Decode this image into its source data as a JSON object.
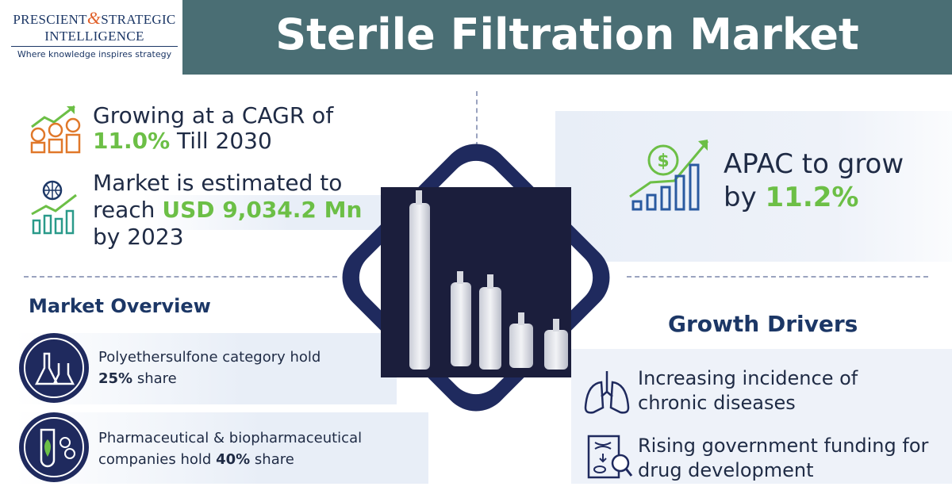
{
  "logo": {
    "name_a": "PRESCIENT",
    "amp": "&",
    "name_b": "STRATEGIC",
    "name_c": "INTELLIGENCE",
    "tagline": "Where knowledge inspires strategy"
  },
  "header": {
    "title": "Sterile Filtration Market"
  },
  "highlights": [
    {
      "lines": [
        "Growing at a CAGR of"
      ],
      "value": "11.0%",
      "suffix": "Till 2030"
    },
    {
      "lines": [
        "Market is estimated to",
        "reach"
      ],
      "value": "USD 9,034.2 Mn",
      "suffix": "by 2023"
    }
  ],
  "apac": {
    "lines": [
      "APAC to grow",
      "by"
    ],
    "value": "11.2%"
  },
  "overview": {
    "title": "Market Overview",
    "items": [
      {
        "text": "Polyethersulfone category hold",
        "value": "25%",
        "suffix": "share"
      },
      {
        "text": "Pharmaceutical & biopharmaceutical companies hold",
        "value": "40%",
        "suffix": "share"
      }
    ]
  },
  "drivers": {
    "title": "Growth Drivers",
    "items": [
      "Increasing incidence of chronic diseases",
      "Rising government funding for drug development"
    ]
  }
}
